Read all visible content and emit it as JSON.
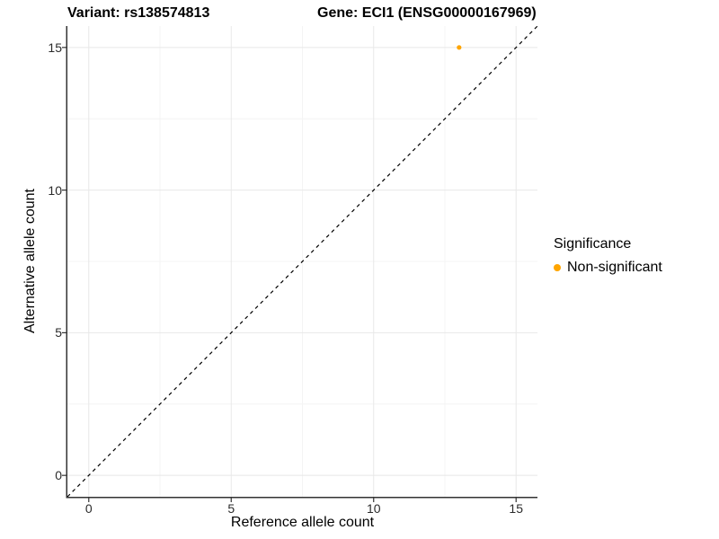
{
  "chart_data": {
    "type": "scatter",
    "title_left": "Variant: rs138574813",
    "title_right": "Gene: ECI1 (ENSG00000167969)",
    "xlabel": "Reference allele count",
    "ylabel": "Alternative allele count",
    "xlim": [
      -0.75,
      15.75
    ],
    "ylim": [
      -0.75,
      15.75
    ],
    "x_major_ticks": [
      0,
      5,
      10,
      15
    ],
    "y_major_ticks": [
      0,
      5,
      10,
      15
    ],
    "x_minor_ticks": [
      2.5,
      7.5,
      12.5
    ],
    "y_minor_ticks": [
      2.5,
      7.5,
      12.5
    ],
    "grid": "major+minor",
    "series": [
      {
        "name": "Non-significant",
        "color": "#FFA500",
        "points": [
          {
            "x": 13,
            "y": 15
          }
        ]
      }
    ],
    "reference_line": {
      "type": "identity y=x",
      "style": "dashed",
      "color": "#000000"
    },
    "legend": {
      "title": "Significance",
      "position": "right",
      "items": [
        {
          "label": "Non-significant",
          "color": "#FFA500"
        }
      ]
    },
    "colors": {
      "background": "#FFFFFF",
      "grid_major": "#E8E8E8",
      "grid_minor": "#F4F4F4",
      "axis_line": "#333333",
      "tick_mark": "#333333",
      "tick_text": "#2B2B2B"
    }
  }
}
